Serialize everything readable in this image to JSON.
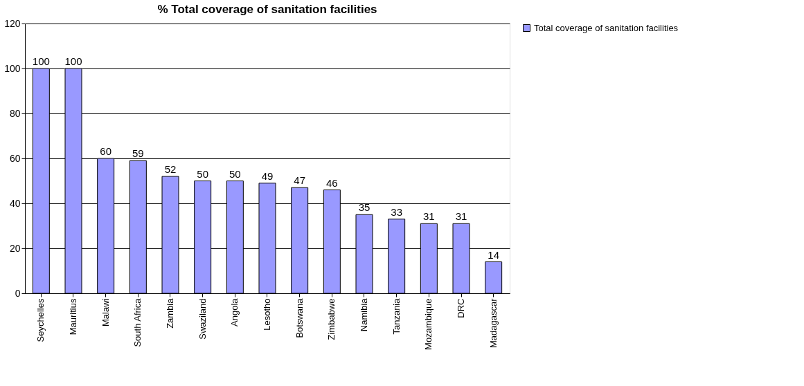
{
  "chart_data": {
    "type": "bar",
    "title": "% Total coverage of sanitation facilities",
    "categories": [
      "Seychelles",
      "Mauritius",
      "Malawi",
      "South Africa",
      "Zambia",
      "Swaziland",
      "Angola",
      "Lesotho",
      "Botswana",
      "Zimbabwe",
      "Namibia",
      "Tanzania",
      "Mozambique",
      "DRC",
      "Madagascar"
    ],
    "series": [
      {
        "name": "Total coverage of sanitation facilities",
        "color": "#9999ff",
        "values": [
          100,
          100,
          60,
          59,
          52,
          50,
          50,
          49,
          47,
          46,
          35,
          33,
          31,
          31,
          14
        ]
      }
    ],
    "ylim": [
      0,
      120
    ],
    "yticks": [
      0,
      20,
      40,
      60,
      80,
      100,
      120
    ],
    "grid": "y",
    "legend": "right",
    "data_labels": true
  }
}
